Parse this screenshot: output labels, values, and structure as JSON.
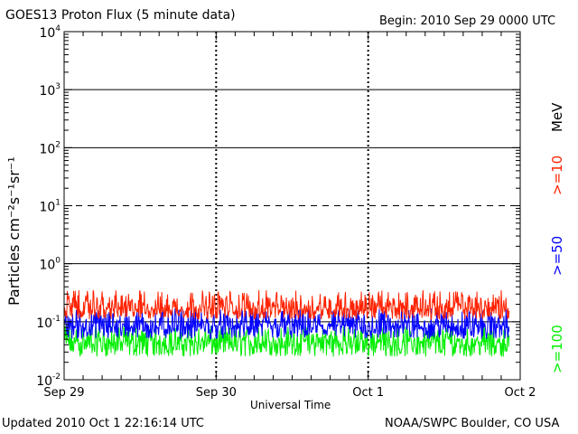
{
  "header": {
    "title": "GOES13 Proton Flux (5 minute data)",
    "begin": "Begin: 2010 Sep 29 0000 UTC"
  },
  "footer": {
    "updated": "Updated 2010 Oct  1 22:16:14 UTC",
    "credit": "NOAA/SWPC Boulder, CO USA"
  },
  "chart_data": {
    "type": "line",
    "title": "GOES13 Proton Flux (5 minute data)",
    "xlabel": "Universal Time",
    "ylabel": "Particles cm⁻²s⁻¹sr⁻¹",
    "y_scale": "log",
    "ylim": [
      0.01,
      10000
    ],
    "y_ticks": [
      {
        "value": 10000,
        "base": "10",
        "exp": "4"
      },
      {
        "value": 1000,
        "base": "10",
        "exp": "3"
      },
      {
        "value": 100,
        "base": "10",
        "exp": "2"
      },
      {
        "value": 10,
        "base": "10",
        "exp": "1"
      },
      {
        "value": 1,
        "base": "10",
        "exp": "0"
      },
      {
        "value": 0.1,
        "base": "10",
        "exp": "-1"
      },
      {
        "value": 0.01,
        "base": "10",
        "exp": "-2"
      }
    ],
    "x_ticks": [
      "Sep 29",
      "Sep 30",
      "Oct 1",
      "Oct 2"
    ],
    "xlim": [
      "2010-09-29 00:00",
      "2010-10-02 00:00"
    ],
    "x_end_of_data": "2010-10-01 22:15",
    "reference_lines": [
      {
        "value": 1000,
        "style": "solid"
      },
      {
        "value": 100,
        "style": "solid"
      },
      {
        "value": 10,
        "style": "dashed"
      },
      {
        "value": 1,
        "style": "solid"
      },
      {
        "value": 0.1,
        "style": "solid"
      }
    ],
    "series": [
      {
        "name": ">=10",
        "color": "#ff2200",
        "typical": 0.17,
        "min": 0.11,
        "max": 0.35
      },
      {
        "name": ">=50",
        "color": "#0000ff",
        "typical": 0.085,
        "min": 0.05,
        "max": 0.17
      },
      {
        "name": ">=100",
        "color": "#00ee00",
        "typical": 0.045,
        "min": 0.025,
        "max": 0.085
      }
    ],
    "unit_label": "MeV"
  }
}
